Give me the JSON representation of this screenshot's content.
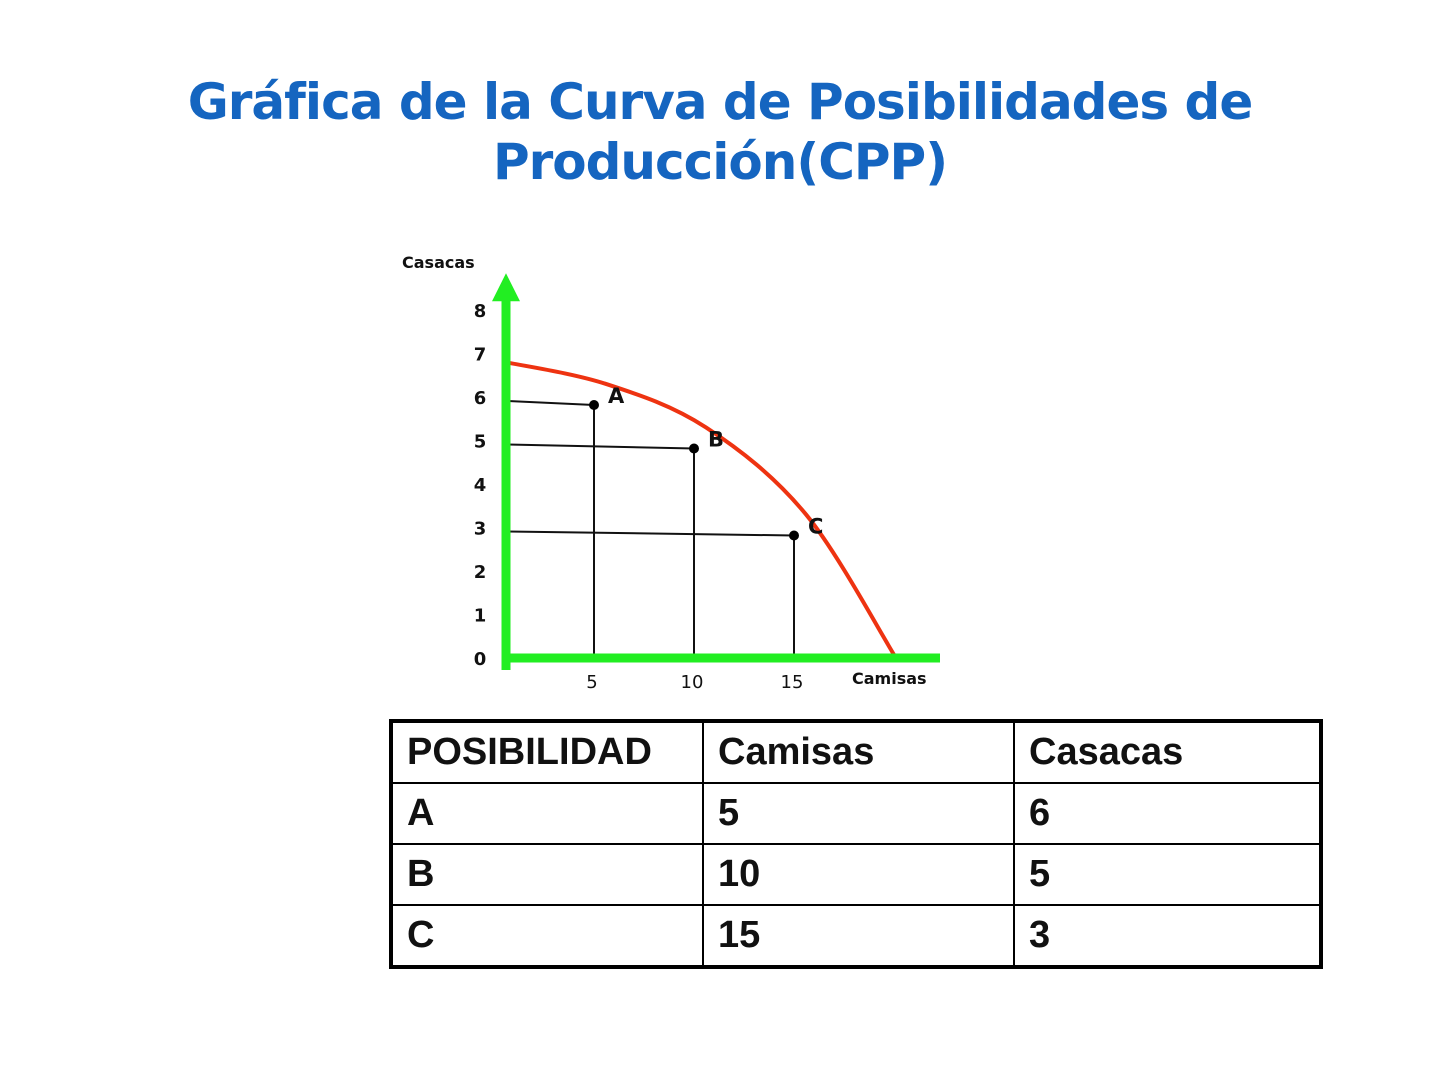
{
  "title": {
    "line1": "Gráfica de la Curva de Posibilidades de",
    "line2": "Producción(CPP)"
  },
  "colors": {
    "title": "#1565c0",
    "axes": "#22ee22",
    "curve": "#ee3311",
    "guides": "#111111"
  },
  "chart_data": {
    "type": "line",
    "ylabel": "Casacas",
    "xlabel": "Camisas",
    "y_ticks": [
      "0",
      "1",
      "2",
      "3",
      "4",
      "5",
      "6",
      "7",
      "8"
    ],
    "x_ticks": [
      "5",
      "10",
      "15"
    ],
    "xlim": [
      0,
      23
    ],
    "ylim": [
      0,
      8.8
    ],
    "curve": {
      "x": [
        0,
        5,
        10,
        15,
        19.5
      ],
      "y": [
        6.8,
        6.3,
        5.3,
        3.3,
        0
      ]
    },
    "points": [
      {
        "label": "A",
        "x": 5,
        "y": 6
      },
      {
        "label": "B",
        "x": 10,
        "y": 5
      },
      {
        "label": "C",
        "x": 15,
        "y": 3
      }
    ],
    "grid": false,
    "legend": "none"
  },
  "table": {
    "headers": [
      "POSIBILIDAD",
      "Camisas",
      "Casacas"
    ],
    "rows": [
      [
        "A",
        "5",
        "6"
      ],
      [
        "B",
        "10",
        "5"
      ],
      [
        "C",
        "15",
        "3"
      ]
    ]
  }
}
